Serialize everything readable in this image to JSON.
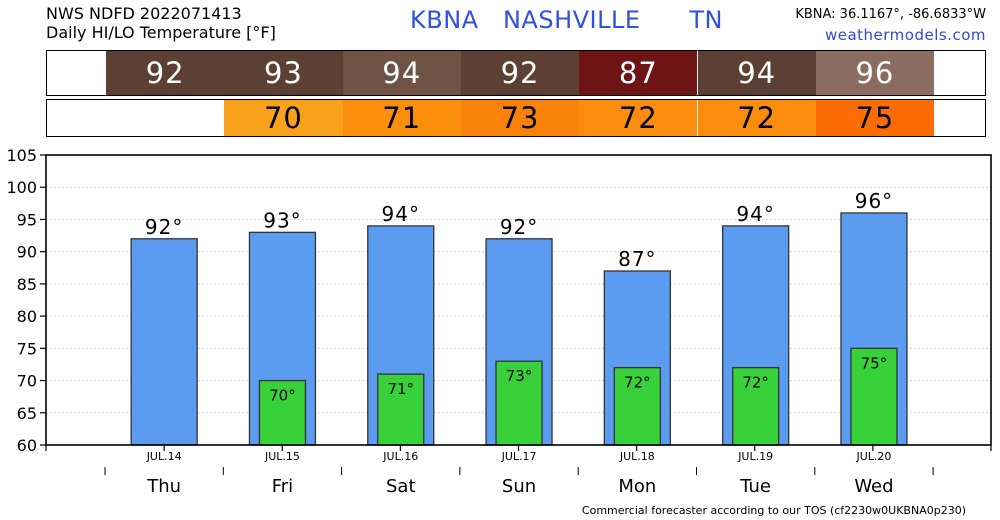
{
  "header": {
    "line1": "NWS NDFD 2022071413",
    "line2": "Daily HI/LO Temperature [°F]",
    "station_id": "KBNA",
    "station_name": "NASHVILLE",
    "state": "TN",
    "coords": "KBNA: 36.1167°, -86.6833°W",
    "site": "weathermodels.com"
  },
  "colors": {
    "hi_bar": "#5b9bf0",
    "lo_bar": "#38d13a",
    "hi_cells": [
      "#5c4033",
      "#5c4033",
      "#6e5244",
      "#5c4033",
      "#6e1414",
      "#5c4033",
      "#8a6c60"
    ],
    "lo_cells": [
      "#f9a11b",
      "#fb8e0a",
      "#fb820a",
      "#fb8c0c",
      "#fb8c0c",
      "#fb6c04"
    ]
  },
  "chart_data": {
    "type": "bar",
    "categories": [
      "Thu",
      "Fri",
      "Sat",
      "Sun",
      "Mon",
      "Tue",
      "Wed"
    ],
    "dates": [
      "JUL.14",
      "JUL.15",
      "JUL.16",
      "JUL.17",
      "JUL.18",
      "JUL.19",
      "JUL.20"
    ],
    "series": [
      {
        "values": [
          92,
          93,
          94,
          92,
          87,
          94,
          96
        ]
      },
      {
        "values": [
          null,
          70,
          71,
          73,
          72,
          72,
          75
        ]
      }
    ],
    "hi_labels": [
      "92°",
      "93°",
      "94°",
      "92°",
      "87°",
      "94°",
      "96°"
    ],
    "lo_labels": [
      "",
      "70°",
      "71°",
      "73°",
      "72°",
      "72°",
      "75°"
    ],
    "hi_strip": [
      "92",
      "93",
      "94",
      "92",
      "87",
      "94",
      "96"
    ],
    "lo_strip": [
      "70",
      "71",
      "73",
      "72",
      "72",
      "75"
    ],
    "yticks": [
      "60",
      "65",
      "70",
      "75",
      "80",
      "85",
      "90",
      "95",
      "100",
      "105"
    ],
    "ylim": [
      60,
      105
    ],
    "grid": true
  },
  "footer": "Commercial forecaster according to our TOS (cf2230w0UKBNA0p230)"
}
